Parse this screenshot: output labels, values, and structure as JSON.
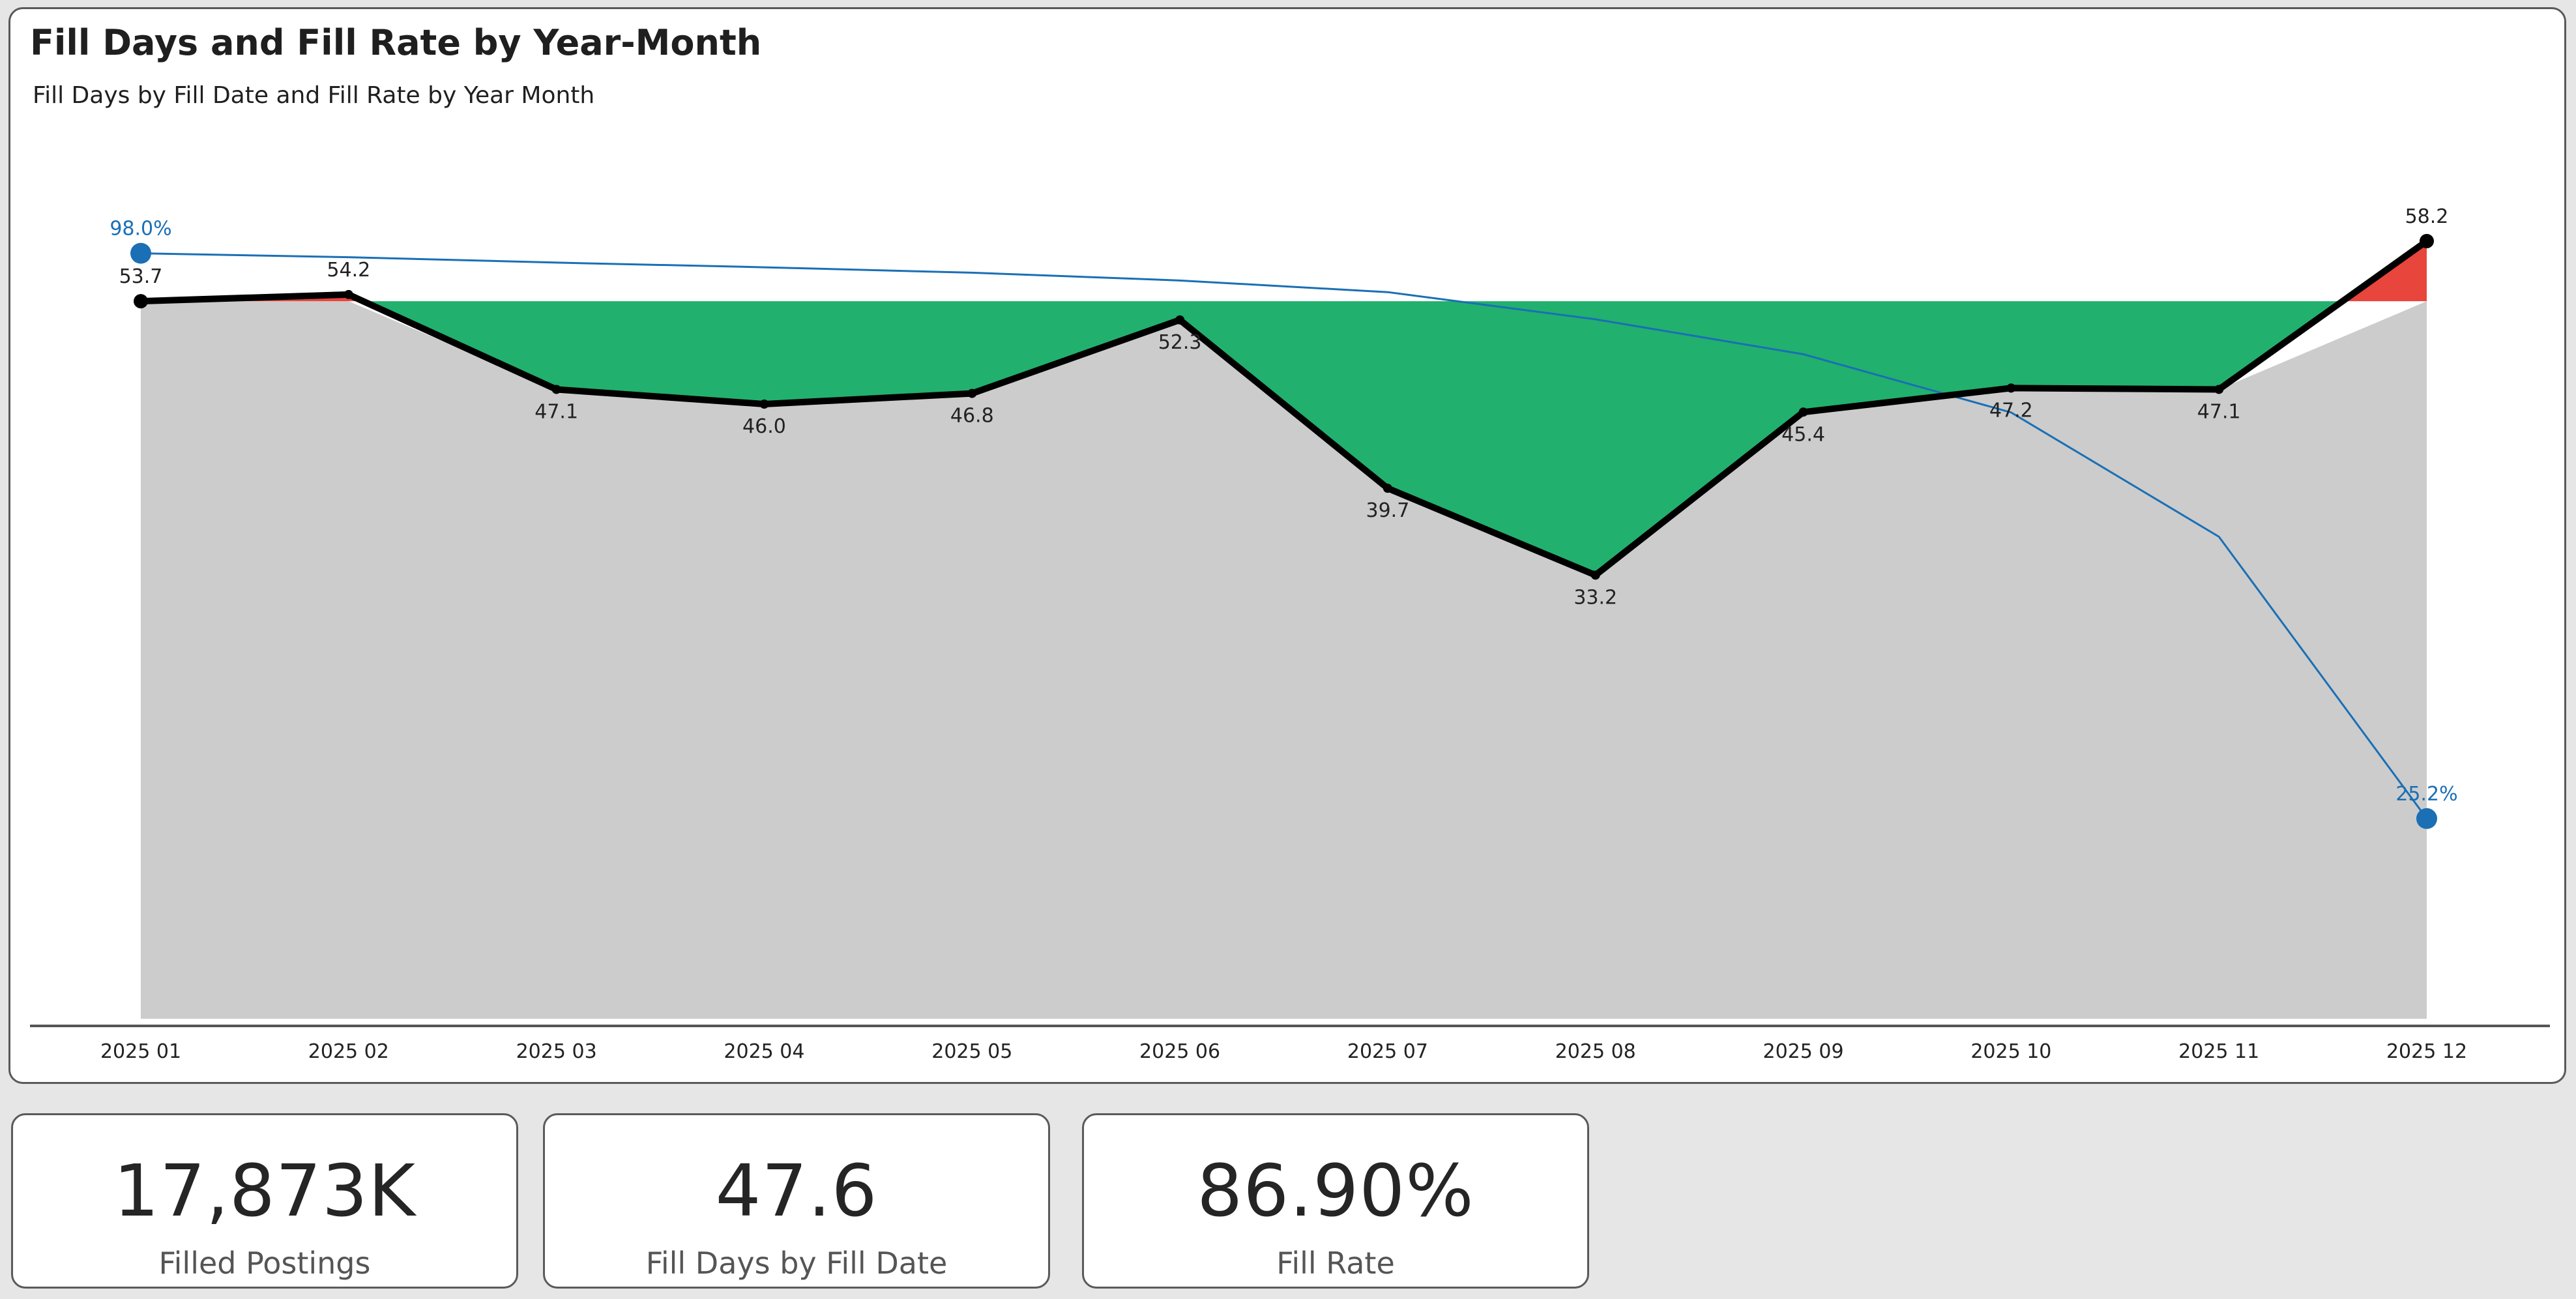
{
  "title": "Fill Days and Fill Rate by Year-Month",
  "subtitle": "Fill Days by Fill Date and Fill Rate by Year Month",
  "colors": {
    "fill_days_line": "#000000",
    "fill_rate_line": "#1a6fb5",
    "baseline_area": "#cccccc",
    "below_target": "#22b06e",
    "above_target": "#e8453c"
  },
  "chart_data": {
    "type": "line",
    "categories": [
      "2025 01",
      "2025 02",
      "2025 03",
      "2025 04",
      "2025 05",
      "2025 06",
      "2025 07",
      "2025 08",
      "2025 09",
      "2025 10",
      "2025 11",
      "2025 12"
    ],
    "series": [
      {
        "values": [
          53.7,
          54.2,
          47.1,
          46.0,
          46.8,
          52.3,
          39.7,
          33.2,
          45.4,
          47.2,
          47.1,
          58.2
        ],
        "labels": [
          "53.7",
          "54.2",
          "47.1",
          "46.0",
          "46.8",
          "52.3",
          "39.7",
          "33.2",
          "45.4",
          "47.2",
          "47.1",
          "58.2"
        ]
      },
      {
        "values": [
          0.98,
          0.975,
          0.968,
          0.962,
          0.955,
          0.945,
          0.93,
          0.895,
          0.85,
          0.775,
          0.615,
          0.252
        ],
        "labels": [
          "98.0%",
          "",
          "",
          "",
          "",
          "",
          "",
          "",
          "",
          "",
          "",
          "25.2%"
        ]
      }
    ],
    "reference_value": 53.7,
    "fill_below_reference": "green",
    "fill_above_reference": "red",
    "grid": false,
    "legend": "none"
  },
  "kpis": [
    {
      "value": "17,873K",
      "label": "Filled Postings"
    },
    {
      "value": "47.6",
      "label": "Fill Days by Fill Date"
    },
    {
      "value": "86.90%",
      "label": "Fill Rate"
    }
  ]
}
